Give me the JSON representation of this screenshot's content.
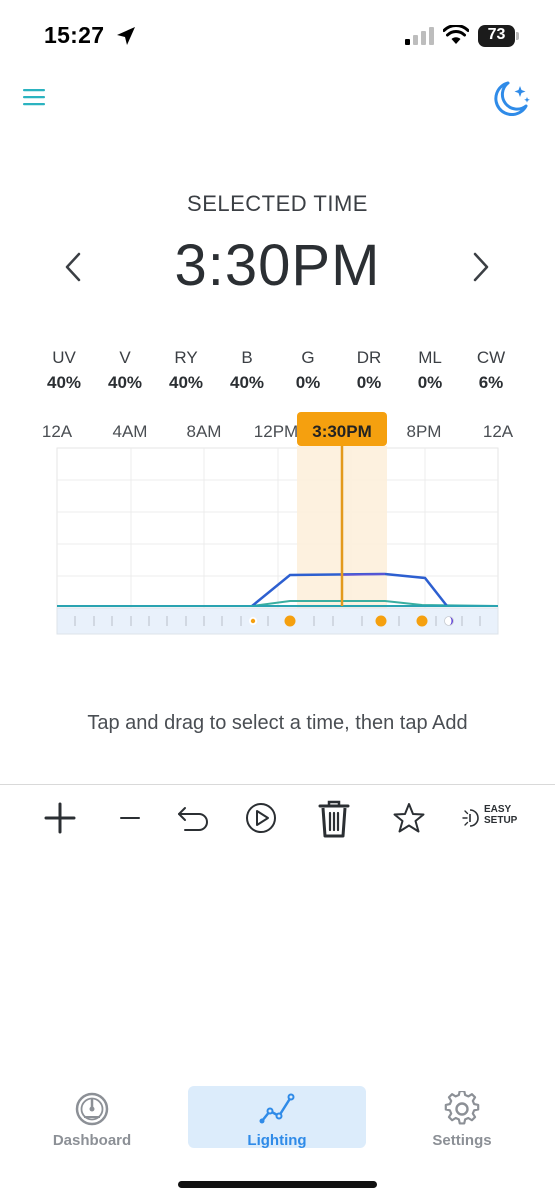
{
  "status_bar": {
    "time": "15:27",
    "battery": "73"
  },
  "header": {
    "menu_icon": "hamburger-menu-icon",
    "mode_icon": "moon-stars-icon"
  },
  "selected": {
    "title": "SELECTED TIME",
    "time": "3:30PM"
  },
  "channels": [
    {
      "name": "UV",
      "value": "40%"
    },
    {
      "name": "V",
      "value": "40%"
    },
    {
      "name": "RY",
      "value": "40%"
    },
    {
      "name": "B",
      "value": "40%"
    },
    {
      "name": "G",
      "value": "0%"
    },
    {
      "name": "DR",
      "value": "0%"
    },
    {
      "name": "ML",
      "value": "0%"
    },
    {
      "name": "CW",
      "value": "6%"
    }
  ],
  "timeline": {
    "labels": [
      "12A",
      "4AM",
      "8AM",
      "12PM",
      "8PM",
      "12A"
    ],
    "marker_label": "3:30PM",
    "accent_color": "#f5a00f",
    "schedule_color": "#2d5fd0",
    "secondary_color": "#3aaea0"
  },
  "hint": "Tap and drag to select a time, then tap Add",
  "toolbar": {
    "icons": [
      "add-icon",
      "remove-icon",
      "undo-icon",
      "play-icon",
      "trash-icon",
      "star-icon",
      "easy-setup-icon"
    ],
    "easy_line1": "EASY",
    "easy_line2": "SETUP"
  },
  "tabs": [
    {
      "label": "Dashboard",
      "icon": "gauge-icon",
      "active": false
    },
    {
      "label": "Lighting",
      "icon": "line-chart-icon",
      "active": true
    },
    {
      "label": "Settings",
      "icon": "gear-icon",
      "active": false
    }
  ]
}
